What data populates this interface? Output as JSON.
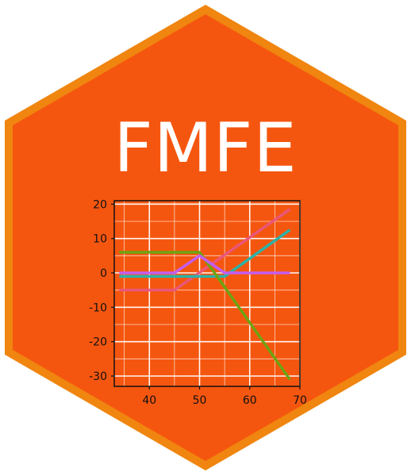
{
  "logo": {
    "title": "FMFE",
    "colors": {
      "border": "#F0850F",
      "fill": "#F5560F",
      "plot_bg": "#F5560F",
      "grid": "#FFFFFF",
      "frame": "#111111"
    }
  },
  "chart_data": {
    "type": "line",
    "title": "",
    "xlabel": "",
    "ylabel": "",
    "xlim": [
      33,
      70
    ],
    "ylim": [
      -33,
      21
    ],
    "xticks": [
      40,
      50,
      60,
      70
    ],
    "yticks": [
      20,
      10,
      0,
      -10,
      -20,
      -30
    ],
    "grid": true,
    "legend": "none",
    "series": [
      {
        "color": "#E9577A",
        "x": [
          34,
          45,
          68
        ],
        "y": [
          -5,
          -5,
          18.5
        ]
      },
      {
        "color": "#2BB3A8",
        "x": [
          34,
          55,
          68
        ],
        "y": [
          -1,
          -1,
          12.5
        ]
      },
      {
        "color": "#6EA312",
        "x": [
          34,
          50,
          53,
          68
        ],
        "y": [
          6,
          6,
          0,
          -31
        ]
      },
      {
        "color": "#C45DF0",
        "x": [
          34,
          45,
          50,
          55,
          68
        ],
        "y": [
          0,
          0,
          5,
          0,
          0
        ]
      }
    ]
  }
}
